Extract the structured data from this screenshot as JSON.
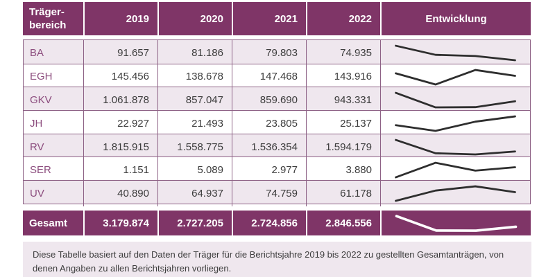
{
  "colors": {
    "header_bg": "#7f3567",
    "header_text": "#ffffff",
    "row_alt_bg": "#efe7ee",
    "row_bg": "#ffffff",
    "label_text": "#8c4d7e",
    "value_text": "#3c3c3c",
    "border": "#8d6185",
    "spark_line": "#2e2e2e",
    "spark_line_total": "#ffffff"
  },
  "table": {
    "header": {
      "area": "Träger-\nbereich",
      "years": [
        "2019",
        "2020",
        "2021",
        "2022"
      ],
      "trend": "Entwicklung"
    },
    "rows": [
      {
        "label": "BA",
        "values": [
          "91.657",
          "81.186",
          "79.803",
          "74.935"
        ],
        "numeric": [
          91657,
          81186,
          79803,
          74935
        ]
      },
      {
        "label": "EGH",
        "values": [
          "145.456",
          "138.678",
          "147.468",
          "143.916"
        ],
        "numeric": [
          145456,
          138678,
          147468,
          143916
        ]
      },
      {
        "label": "GKV",
        "values": [
          "1.061.878",
          "857.047",
          "859.690",
          "943.331"
        ],
        "numeric": [
          1061878,
          857047,
          859690,
          943331
        ]
      },
      {
        "label": "JH",
        "values": [
          "22.927",
          "21.493",
          "23.805",
          "25.137"
        ],
        "numeric": [
          22927,
          21493,
          23805,
          25137
        ]
      },
      {
        "label": "RV",
        "values": [
          "1.815.915",
          "1.558.775",
          "1.536.354",
          "1.594.179"
        ],
        "numeric": [
          1815915,
          1558775,
          1536354,
          1594179
        ]
      },
      {
        "label": "SER",
        "values": [
          "1.151",
          "5.089",
          "2.977",
          "3.880"
        ],
        "numeric": [
          1151,
          5089,
          2977,
          3880
        ]
      },
      {
        "label": "UV",
        "values": [
          "40.890",
          "64.937",
          "74.759",
          "61.178"
        ],
        "numeric": [
          40890,
          64937,
          74759,
          61178
        ]
      }
    ],
    "total": {
      "label": "Gesamt",
      "values": [
        "3.179.874",
        "2.727.205",
        "2.724.856",
        "2.846.556"
      ],
      "numeric": [
        3179874,
        2727205,
        2724856,
        2846556
      ]
    }
  },
  "footnote": "Diese Tabelle basiert auf den Daten der Träger für die Berichtsjahre 2019 bis 2022 zu gestellten Gesamtanträgen, von denen Angaben zu allen Berichtsjahren vorliegen.",
  "chart_data": {
    "type": "table",
    "title": "Gestellte Gesamtanträge nach Trägerbereich",
    "categories": [
      "2019",
      "2020",
      "2021",
      "2022"
    ],
    "row_header": "Trägerbereich",
    "trend_column": "Entwicklung",
    "series": [
      {
        "name": "BA",
        "values": [
          91657,
          81186,
          79803,
          74935
        ]
      },
      {
        "name": "EGH",
        "values": [
          145456,
          138678,
          147468,
          143916
        ]
      },
      {
        "name": "GKV",
        "values": [
          1061878,
          857047,
          859690,
          943331
        ]
      },
      {
        "name": "JH",
        "values": [
          22927,
          21493,
          23805,
          25137
        ]
      },
      {
        "name": "RV",
        "values": [
          1815915,
          1558775,
          1536354,
          1594179
        ]
      },
      {
        "name": "SER",
        "values": [
          1151,
          5089,
          2977,
          3880
        ]
      },
      {
        "name": "UV",
        "values": [
          40890,
          64937,
          74759,
          61178
        ]
      },
      {
        "name": "Gesamt",
        "values": [
          3179874,
          2727205,
          2724856,
          2846556
        ]
      }
    ],
    "notes": "Entwicklung column shows per-row min-max normalized line sparklines of the four yearly values"
  }
}
